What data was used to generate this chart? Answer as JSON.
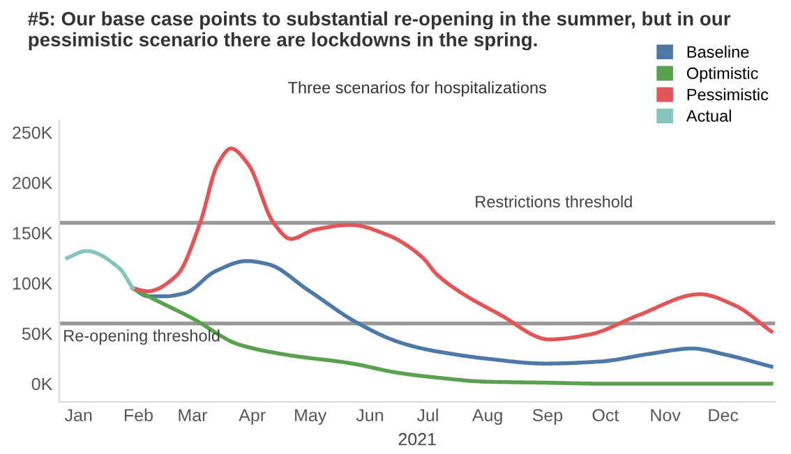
{
  "chart_data": {
    "type": "line",
    "title": "#5: Our base case points to substantial re-opening in the summer, but in our pessimistic scenario there are lockdowns in the spring.",
    "subtitle": "Three scenarios for hospitalizations",
    "xlabel": "2021",
    "series": [
      {
        "name": "Baseline",
        "color": "#4e79a7",
        "x": [
          "2021-01-29",
          "2021-02-06",
          "2021-02-15",
          "2021-02-25",
          "2021-03-13",
          "2021-03-29",
          "2021-04-09",
          "2021-04-30",
          "2021-05-25",
          "2021-06-15",
          "2021-06-28",
          "2021-07-06",
          "2021-07-31",
          "2021-08-31",
          "2021-09-28",
          "2021-10-25",
          "2021-11-15",
          "2021-12-02",
          "2021-12-26"
        ],
        "values": [
          95000,
          87000,
          87000,
          90000,
          112000,
          122000,
          119000,
          93000,
          61000,
          42000,
          35000,
          32000,
          25000,
          20000,
          22000,
          30000,
          35000,
          29000,
          17000
        ]
      },
      {
        "name": "Optimistic",
        "color": "#59a14f",
        "x": [
          "2021-01-29",
          "2021-02-06",
          "2021-03-01",
          "2021-03-25",
          "2021-04-18",
          "2021-05-23",
          "2021-06-15",
          "2021-07-06",
          "2021-07-31",
          "2021-08-31",
          "2021-10-01",
          "2021-12-26"
        ],
        "values": [
          95000,
          87000,
          65000,
          39000,
          29000,
          20000,
          11000,
          6000,
          2000,
          1000,
          0,
          0
        ]
      },
      {
        "name": "Pessimistic",
        "color": "#e15759",
        "x": [
          "2021-01-29",
          "2021-02-06",
          "2021-02-21",
          "2021-03-05",
          "2021-03-14",
          "2021-03-21",
          "2021-03-30",
          "2021-04-12",
          "2021-04-21",
          "2021-05-03",
          "2021-05-22",
          "2021-06-10",
          "2021-06-28",
          "2021-07-06",
          "2021-08-08",
          "2021-09-02",
          "2021-09-23",
          "2021-10-18",
          "2021-11-19",
          "2021-12-07",
          "2021-12-26"
        ],
        "values": [
          95000,
          92000,
          108000,
          160000,
          218000,
          234000,
          218000,
          160000,
          144000,
          153000,
          158000,
          148000,
          126000,
          108000,
          68000,
          44000,
          49000,
          68000,
          89000,
          78000,
          52000
        ]
      },
      {
        "name": "Actual",
        "color": "#86c5bd",
        "x": [
          "2020-12-26",
          "2021-01-05",
          "2021-01-22",
          "2021-01-29"
        ],
        "values": [
          125000,
          132000,
          115000,
          95000
        ]
      }
    ],
    "ref_lines": [
      {
        "axis": "y",
        "value": 160000,
        "label": "Restrictions threshold",
        "color": "#999999"
      },
      {
        "axis": "y",
        "value": 60000,
        "label": "Re-opening threshold",
        "color": "#999999"
      }
    ],
    "xlim": [
      "2020-12-22",
      "2021-12-28"
    ],
    "xticks": [
      {
        "value": "2021-01-01",
        "label": "Jan"
      },
      {
        "value": "2021-02-01",
        "label": "Feb"
      },
      {
        "value": "2021-03-01",
        "label": "Mar"
      },
      {
        "value": "2021-04-01",
        "label": "Apr"
      },
      {
        "value": "2021-05-01",
        "label": "May"
      },
      {
        "value": "2021-06-01",
        "label": "Jun"
      },
      {
        "value": "2021-07-01",
        "label": "Jul"
      },
      {
        "value": "2021-08-01",
        "label": "Aug"
      },
      {
        "value": "2021-09-01",
        "label": "Sep"
      },
      {
        "value": "2021-10-01",
        "label": "Oct"
      },
      {
        "value": "2021-11-01",
        "label": "Nov"
      },
      {
        "value": "2021-12-01",
        "label": "Dec"
      }
    ],
    "ylim": [
      -18000,
      262000
    ],
    "yticks": [
      {
        "value": 0,
        "label": "0K"
      },
      {
        "value": 50000,
        "label": "50K"
      },
      {
        "value": 100000,
        "label": "100K"
      },
      {
        "value": 150000,
        "label": "150K"
      },
      {
        "value": 200000,
        "label": "200K"
      },
      {
        "value": 250000,
        "label": "250K"
      }
    ],
    "legend": "top right",
    "grid": false,
    "marker": "none",
    "line_style": "solid"
  }
}
